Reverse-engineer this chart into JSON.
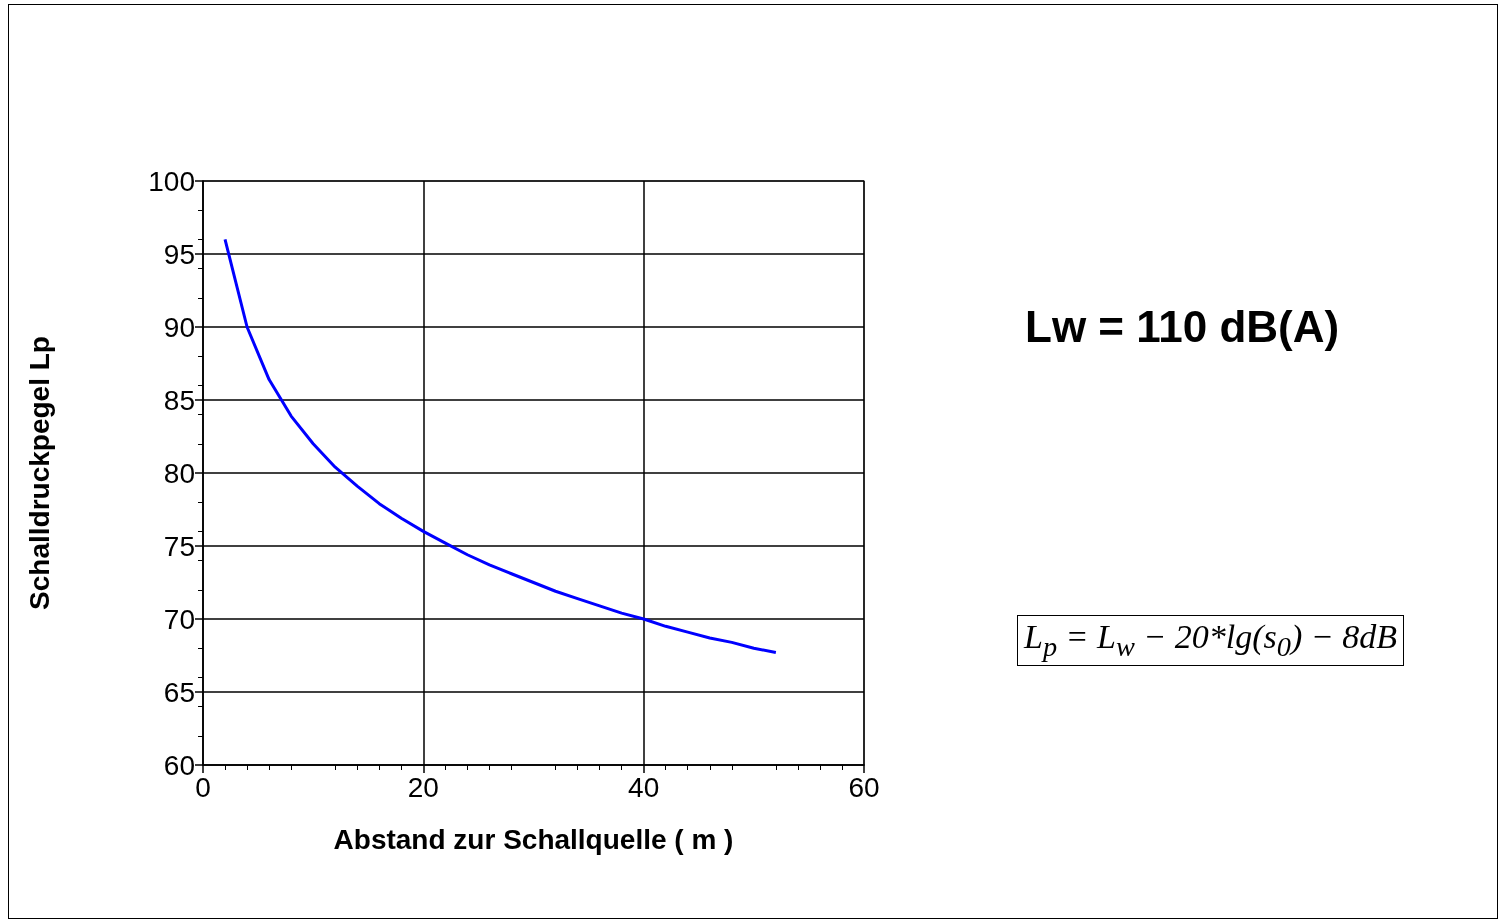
{
  "chart_data": {
    "type": "line",
    "xlabel": "Abstand zur Schallquelle ( m )",
    "ylabel": "Schalldruckpegel Lp",
    "x": [
      2,
      4,
      6,
      8,
      10,
      12,
      14,
      16,
      18,
      20,
      22,
      24,
      26,
      28,
      30,
      32,
      34,
      36,
      38,
      40,
      42,
      44,
      46,
      48,
      50,
      52
    ],
    "series": [
      {
        "color": "#0000ff",
        "values": [
          96,
          90,
          86.4,
          83.9,
          82,
          80.4,
          79.1,
          77.9,
          76.9,
          76,
          75.2,
          74.4,
          73.7,
          73.1,
          72.5,
          71.9,
          71.4,
          70.9,
          70.4,
          70,
          69.5,
          69.1,
          68.7,
          68.4,
          68,
          67.7
        ]
      }
    ],
    "xlim": [
      0,
      60
    ],
    "xticks": [
      0,
      20,
      40,
      60
    ],
    "ylim": [
      60,
      100
    ],
    "yticks": [
      60,
      65,
      70,
      75,
      80,
      85,
      90,
      95,
      100
    ],
    "grid": true,
    "marker": "none",
    "line_style": "solid",
    "annotations": [
      "Lw = 110 dB(A)",
      "L$_{p}$ = L$_{w}$ − 20*lg(s$_{0}$) − 8dB"
    ]
  }
}
